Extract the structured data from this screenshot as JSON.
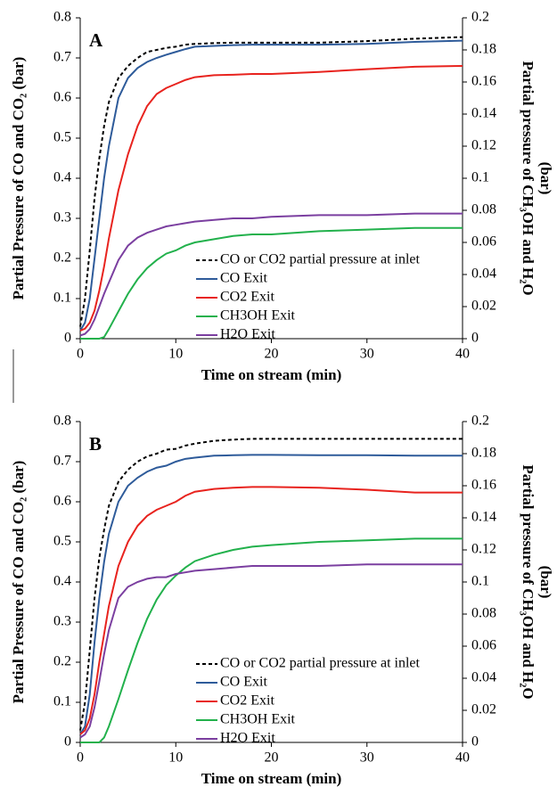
{
  "chart_data": [
    {
      "type": "line",
      "annotation": "A",
      "xlabel": "Time on stream (min)",
      "ylabel": "Partial Pressure of CO and CO₂ (bar)",
      "y2label": [
        "Partial pressure of CH₃OH and H₂O",
        "(bar)"
      ],
      "xlim": [
        0,
        40
      ],
      "xticks": [
        0,
        10,
        20,
        30,
        40
      ],
      "ylim": [
        0,
        0.8
      ],
      "yticks": [
        0,
        0.1,
        0.2,
        0.3,
        0.4,
        0.5,
        0.6,
        0.7,
        0.8
      ],
      "y2lim": [
        0,
        0.2
      ],
      "y2ticks": [
        0,
        0.02,
        0.04,
        0.06,
        0.08,
        0.1,
        0.12,
        0.14,
        0.16,
        0.18,
        0.2
      ],
      "grid": false,
      "legend": "lower right",
      "x": [
        0,
        0.5,
        1,
        1.5,
        2,
        2.5,
        3,
        4,
        5,
        6,
        7,
        8,
        9,
        10,
        11,
        12,
        14,
        16,
        18,
        20,
        25,
        30,
        35,
        40
      ],
      "series": [
        {
          "name": "CO or CO2 partial pressure at inlet",
          "color": "#000000",
          "linestyle": "dashed",
          "values": [
            0.03,
            0.1,
            0.22,
            0.35,
            0.45,
            0.53,
            0.59,
            0.65,
            0.68,
            0.7,
            0.715,
            0.72,
            0.725,
            0.728,
            0.733,
            0.735,
            0.737,
            0.738,
            0.738,
            0.738,
            0.738,
            0.742,
            0.748,
            0.752
          ]
        },
        {
          "name": "CO Exit",
          "color": "#2e5b9a",
          "linestyle": "solid",
          "values": [
            0.02,
            0.04,
            0.1,
            0.2,
            0.3,
            0.4,
            0.48,
            0.6,
            0.65,
            0.675,
            0.69,
            0.7,
            0.708,
            0.715,
            0.722,
            0.728,
            0.73,
            0.732,
            0.733,
            0.733,
            0.733,
            0.735,
            0.74,
            0.743
          ]
        },
        {
          "name": "CO2 Exit",
          "color": "#e8231e",
          "linestyle": "solid",
          "values": [
            0.02,
            0.025,
            0.04,
            0.07,
            0.12,
            0.18,
            0.25,
            0.37,
            0.46,
            0.53,
            0.58,
            0.61,
            0.625,
            0.635,
            0.645,
            0.652,
            0.657,
            0.658,
            0.66,
            0.66,
            0.665,
            0.672,
            0.678,
            0.68
          ]
        },
        {
          "name": "CH3OH Exit",
          "color": "#22b14c",
          "linestyle": "solid",
          "axis": "y2",
          "values": [
            0,
            0,
            0,
            0,
            0,
            0.001,
            0.006,
            0.017,
            0.028,
            0.037,
            0.044,
            0.049,
            0.053,
            0.055,
            0.058,
            0.06,
            0.062,
            0.064,
            0.065,
            0.065,
            0.067,
            0.068,
            0.069,
            0.069
          ]
        },
        {
          "name": "H2O Exit",
          "color": "#7b3fa0",
          "linestyle": "solid",
          "axis": "y2",
          "values": [
            0.002,
            0.003,
            0.006,
            0.012,
            0.02,
            0.028,
            0.035,
            0.049,
            0.058,
            0.063,
            0.066,
            0.068,
            0.07,
            0.071,
            0.072,
            0.073,
            0.074,
            0.075,
            0.075,
            0.076,
            0.077,
            0.077,
            0.078,
            0.078
          ]
        }
      ]
    },
    {
      "type": "line",
      "annotation": "B",
      "xlabel": "Time on stream (min)",
      "ylabel": "Partial Pressure of CO and CO₂ (bar)",
      "y2label": [
        "Partial pressure of CH₃OH and H₂O",
        "(bar)"
      ],
      "xlim": [
        0,
        40
      ],
      "xticks": [
        0,
        10,
        20,
        30,
        40
      ],
      "ylim": [
        0,
        0.8
      ],
      "yticks": [
        0,
        0.1,
        0.2,
        0.3,
        0.4,
        0.5,
        0.6,
        0.7,
        0.8
      ],
      "y2lim": [
        0,
        0.2
      ],
      "y2ticks": [
        0,
        0.02,
        0.04,
        0.06,
        0.08,
        0.1,
        0.12,
        0.14,
        0.16,
        0.18,
        0.2
      ],
      "grid": false,
      "legend": "lower right",
      "x": [
        0,
        0.5,
        1,
        1.5,
        2,
        2.5,
        3,
        4,
        5,
        6,
        7,
        8,
        9,
        10,
        11,
        12,
        14,
        16,
        18,
        20,
        25,
        30,
        35,
        40
      ],
      "series": [
        {
          "name": "CO or CO2 partial pressure at inlet",
          "color": "#000000",
          "linestyle": "dashed",
          "values": [
            0.03,
            0.1,
            0.23,
            0.36,
            0.46,
            0.53,
            0.59,
            0.65,
            0.68,
            0.7,
            0.713,
            0.72,
            0.73,
            0.732,
            0.74,
            0.745,
            0.752,
            0.755,
            0.757,
            0.757,
            0.757,
            0.757,
            0.757,
            0.757
          ]
        },
        {
          "name": "CO Exit",
          "color": "#2e5b9a",
          "linestyle": "solid",
          "values": [
            0.02,
            0.04,
            0.12,
            0.25,
            0.36,
            0.45,
            0.52,
            0.6,
            0.64,
            0.66,
            0.675,
            0.685,
            0.69,
            0.7,
            0.707,
            0.71,
            0.715,
            0.716,
            0.717,
            0.717,
            0.716,
            0.716,
            0.715,
            0.715
          ]
        },
        {
          "name": "CO2 Exit",
          "color": "#e8231e",
          "linestyle": "solid",
          "values": [
            0.02,
            0.03,
            0.06,
            0.12,
            0.2,
            0.27,
            0.34,
            0.44,
            0.5,
            0.54,
            0.565,
            0.58,
            0.59,
            0.6,
            0.615,
            0.625,
            0.632,
            0.635,
            0.637,
            0.637,
            0.635,
            0.63,
            0.623,
            0.623
          ]
        },
        {
          "name": "CH3OH Exit",
          "color": "#22b14c",
          "linestyle": "solid",
          "axis": "y2",
          "values": [
            0,
            0,
            0,
            0,
            0,
            0.003,
            0.01,
            0.027,
            0.045,
            0.062,
            0.077,
            0.089,
            0.098,
            0.104,
            0.109,
            0.113,
            0.117,
            0.12,
            0.122,
            0.123,
            0.125,
            0.126,
            0.127,
            0.127
          ]
        },
        {
          "name": "H2O Exit",
          "color": "#7b3fa0",
          "linestyle": "solid",
          "axis": "y2",
          "values": [
            0.003,
            0.005,
            0.01,
            0.022,
            0.038,
            0.055,
            0.07,
            0.09,
            0.097,
            0.1,
            0.102,
            0.103,
            0.103,
            0.105,
            0.106,
            0.107,
            0.108,
            0.109,
            0.11,
            0.11,
            0.11,
            0.111,
            0.111,
            0.111
          ]
        }
      ]
    }
  ]
}
